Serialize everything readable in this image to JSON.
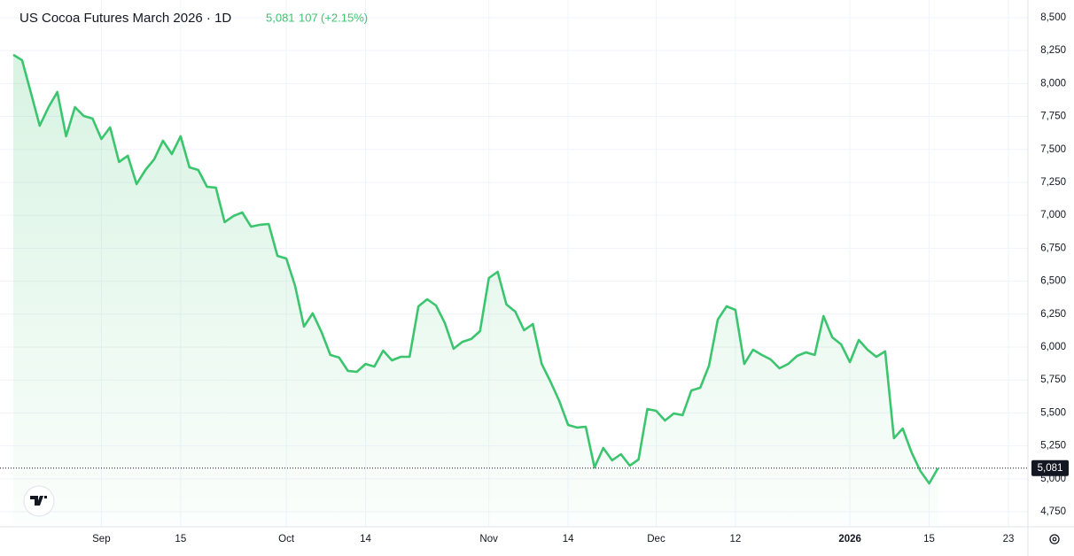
{
  "header": {
    "title": "US Cocoa Futures March 2026 · 1D",
    "price": "5,081",
    "change": "107",
    "change_pct": "(+2.15%)"
  },
  "chart_data": {
    "type": "line",
    "categories": [
      null,
      null,
      null,
      null,
      null,
      null,
      null,
      null,
      null,
      null,
      "Sep",
      null,
      null,
      null,
      null,
      null,
      null,
      null,
      null,
      "15",
      null,
      null,
      null,
      null,
      null,
      null,
      null,
      null,
      null,
      null,
      null,
      "Oct",
      null,
      null,
      null,
      null,
      null,
      null,
      null,
      null,
      "14",
      null,
      null,
      null,
      null,
      null,
      null,
      null,
      null,
      null,
      null,
      null,
      null,
      null,
      "Nov",
      null,
      null,
      null,
      null,
      null,
      null,
      null,
      null,
      "14",
      null,
      null,
      null,
      null,
      null,
      null,
      null,
      null,
      null,
      "Dec",
      null,
      null,
      null,
      null,
      null,
      null,
      null,
      null,
      "12",
      null,
      null,
      null,
      null,
      null,
      null,
      null,
      null,
      null,
      null,
      null,
      null,
      "2026",
      null,
      null,
      null,
      null,
      null,
      null,
      null,
      null,
      "15",
      null,
      null,
      null,
      null,
      null,
      null,
      null,
      null,
      "23"
    ],
    "series": [
      {
        "name": "US Cocoa Futures March 2026",
        "color": "#3cc56f",
        "values": [
          8218,
          8177,
          7929,
          7680,
          7821,
          7936,
          7600,
          7821,
          7754,
          7734,
          7579,
          7667,
          7405,
          7452,
          7237,
          7344,
          7425,
          7566,
          7465,
          7600,
          7364,
          7344,
          7216,
          7210,
          6948,
          6995,
          7022,
          6914,
          6928,
          6934,
          6692,
          6672,
          6464,
          6155,
          6256,
          6114,
          5940,
          5920,
          5819,
          5812,
          5872,
          5852,
          5973,
          5899,
          5926,
          5926,
          6309,
          6363,
          6316,
          6182,
          5987,
          6040,
          6061,
          6121,
          6524,
          6571,
          6323,
          6269,
          6128,
          6175,
          5872,
          5738,
          5590,
          5409,
          5389,
          5395,
          5086,
          5234,
          5140,
          5187,
          5100,
          5147,
          5530,
          5516,
          5442,
          5496,
          5483,
          5671,
          5691,
          5859,
          6208,
          6309,
          6282,
          5872,
          5980,
          5940,
          5906,
          5839,
          5872,
          5933,
          5960,
          5940,
          6235,
          6074,
          6020,
          5886,
          6054,
          5980,
          5926,
          5967,
          5308,
          5382,
          5200,
          5059,
          4965,
          5081,
          null,
          null,
          null,
          null,
          null,
          null,
          null,
          null
        ]
      }
    ],
    "last_value_label": "5,081",
    "ylim": [
      4636,
      8634
    ],
    "yticks": [
      {
        "value": 4750,
        "label": "4,750"
      },
      {
        "value": 5000,
        "label": "5,000"
      },
      {
        "value": 5250,
        "label": "5,250"
      },
      {
        "value": 5500,
        "label": "5,500"
      },
      {
        "value": 5750,
        "label": "5,750"
      },
      {
        "value": 6000,
        "label": "6,000"
      },
      {
        "value": 6250,
        "label": "6,250"
      },
      {
        "value": 6500,
        "label": "6,500"
      },
      {
        "value": 6750,
        "label": "6,750"
      },
      {
        "value": 7000,
        "label": "7,000"
      },
      {
        "value": 7250,
        "label": "7,250"
      },
      {
        "value": 7500,
        "label": "7,500"
      },
      {
        "value": 7750,
        "label": "7,750"
      },
      {
        "value": 8000,
        "label": "8,000"
      },
      {
        "value": 8250,
        "label": "8,250"
      },
      {
        "value": 8500,
        "label": "8,500"
      }
    ],
    "grid": true
  }
}
